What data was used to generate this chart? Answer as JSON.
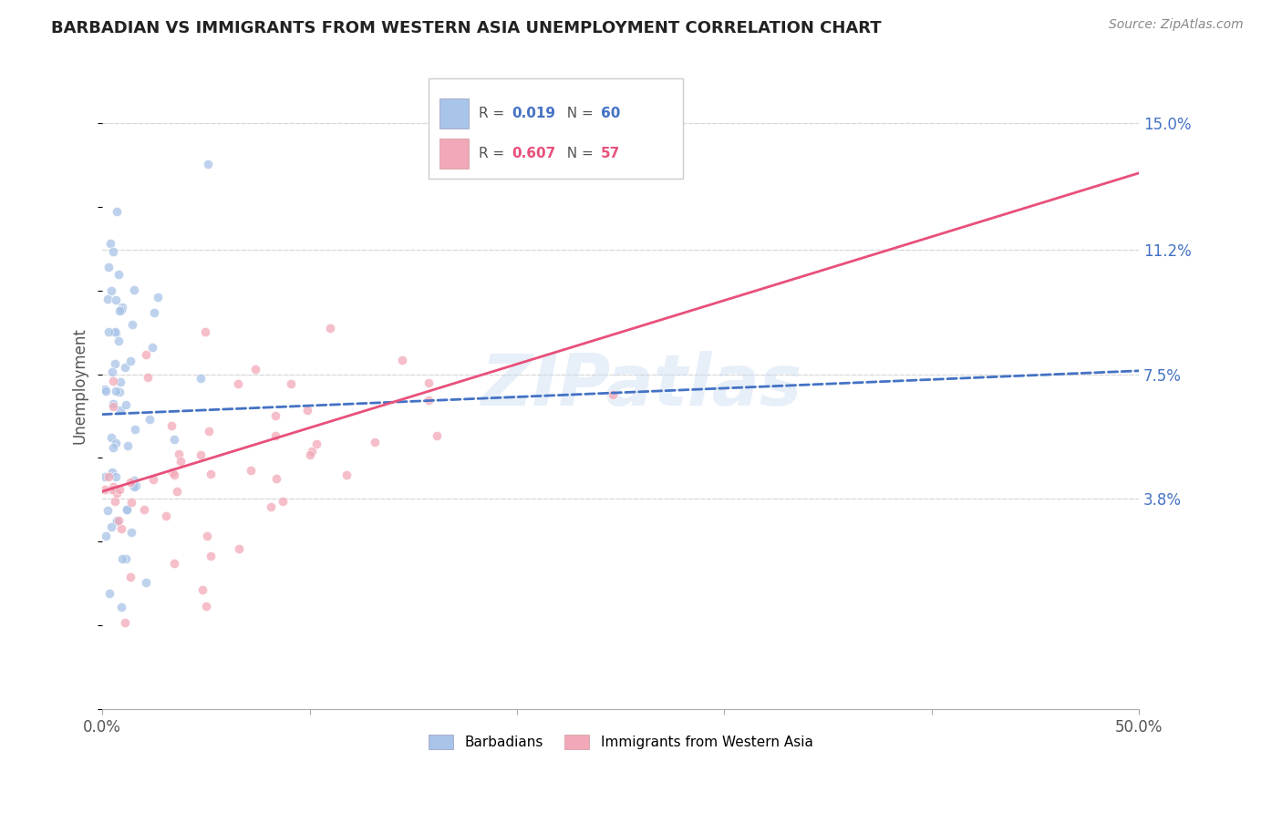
{
  "title": "BARBADIAN VS IMMIGRANTS FROM WESTERN ASIA UNEMPLOYMENT CORRELATION CHART",
  "source": "Source: ZipAtlas.com",
  "ylabel": "Unemployment",
  "xlim": [
    0.0,
    0.5
  ],
  "ylim": [
    -0.025,
    0.168
  ],
  "y_tick_vals_right": [
    0.15,
    0.112,
    0.075,
    0.038
  ],
  "y_tick_labels_right": [
    "15.0%",
    "11.2%",
    "7.5%",
    "3.8%"
  ],
  "legend_r_blue": "0.019",
  "legend_n_blue": "60",
  "legend_r_pink": "0.607",
  "legend_n_pink": "57",
  "legend_label_blue": "Barbadians",
  "legend_label_pink": "Immigrants from Western Asia",
  "watermark": "ZIPatlas",
  "blue_color": "#a8c4e8",
  "pink_color": "#f2a8b8",
  "blue_line_color": "#4472c4",
  "pink_line_color": "#e8507a",
  "blue_line_start_y": 0.063,
  "blue_line_end_y": 0.076,
  "pink_line_start_y": 0.04,
  "pink_line_end_y": 0.135,
  "background_color": "#ffffff",
  "grid_color": "#d8d8d8",
  "title_color": "#222222",
  "label_color": "#555555",
  "right_tick_color": "#4472c4"
}
